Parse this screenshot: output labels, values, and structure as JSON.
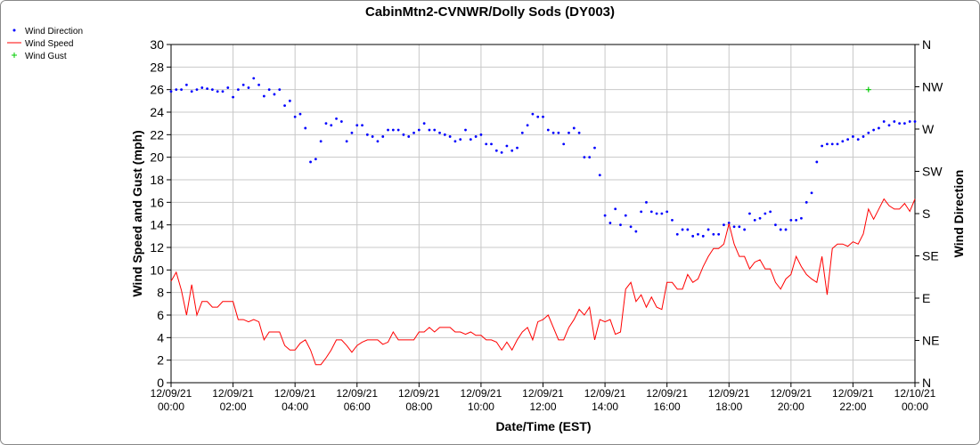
{
  "chart_data": {
    "type": "line",
    "title": "CabinMtn2-CVNWR/Dolly Sods (DY003)",
    "x_label": "Date/Time (EST)",
    "y_label": "Wind Speed and Gust (mph)",
    "y2_label": "Wind Direction",
    "xlim": [
      "12/09/21 00:00",
      "12/10/21 00:00"
    ],
    "xticks": [
      "12/09/21 00:00",
      "12/09/21 02:00",
      "12/09/21 04:00",
      "12/09/21 06:00",
      "12/09/21 08:00",
      "12/09/21 10:00",
      "12/09/21 12:00",
      "12/09/21 14:00",
      "12/09/21 16:00",
      "12/09/21 18:00",
      "12/09/21 20:00",
      "12/09/21 22:00",
      "12/10/21 00:00"
    ],
    "ylim": [
      0,
      30
    ],
    "yticks": [
      0,
      2,
      4,
      6,
      8,
      10,
      12,
      14,
      16,
      18,
      20,
      22,
      24,
      26,
      28,
      30
    ],
    "y2lim": [
      0,
      360
    ],
    "y2ticks": [
      {
        "value": 0,
        "label": "N"
      },
      {
        "value": 45,
        "label": "NE"
      },
      {
        "value": 90,
        "label": "E"
      },
      {
        "value": 135,
        "label": "SE"
      },
      {
        "value": 180,
        "label": "S"
      },
      {
        "value": 225,
        "label": "SW"
      },
      {
        "value": 270,
        "label": "W"
      },
      {
        "value": 315,
        "label": "NW"
      },
      {
        "value": 360,
        "label": "N"
      }
    ],
    "grid": true,
    "legend": "top-left",
    "x": [
      "12/09/21 00:00",
      "12/09/21 00:10",
      "12/09/21 00:20",
      "12/09/21 00:30",
      "12/09/21 00:40",
      "12/09/21 00:50",
      "12/09/21 01:00",
      "12/09/21 01:10",
      "12/09/21 01:20",
      "12/09/21 01:30",
      "12/09/21 01:40",
      "12/09/21 01:50",
      "12/09/21 02:00",
      "12/09/21 02:10",
      "12/09/21 02:20",
      "12/09/21 02:30",
      "12/09/21 02:40",
      "12/09/21 02:50",
      "12/09/21 03:00",
      "12/09/21 03:10",
      "12/09/21 03:20",
      "12/09/21 03:30",
      "12/09/21 03:40",
      "12/09/21 03:50",
      "12/09/21 04:00",
      "12/09/21 04:10",
      "12/09/21 04:20",
      "12/09/21 04:30",
      "12/09/21 04:40",
      "12/09/21 04:50",
      "12/09/21 05:00",
      "12/09/21 05:10",
      "12/09/21 05:20",
      "12/09/21 05:30",
      "12/09/21 05:40",
      "12/09/21 05:50",
      "12/09/21 06:00",
      "12/09/21 06:10",
      "12/09/21 06:20",
      "12/09/21 06:30",
      "12/09/21 06:40",
      "12/09/21 06:50",
      "12/09/21 07:00",
      "12/09/21 07:10",
      "12/09/21 07:20",
      "12/09/21 07:30",
      "12/09/21 07:40",
      "12/09/21 07:50",
      "12/09/21 08:00",
      "12/09/21 08:10",
      "12/09/21 08:20",
      "12/09/21 08:30",
      "12/09/21 08:40",
      "12/09/21 08:50",
      "12/09/21 09:00",
      "12/09/21 09:10",
      "12/09/21 09:20",
      "12/09/21 09:30",
      "12/09/21 09:40",
      "12/09/21 09:50",
      "12/09/21 10:00",
      "12/09/21 10:10",
      "12/09/21 10:20",
      "12/09/21 10:30",
      "12/09/21 10:40",
      "12/09/21 10:50",
      "12/09/21 11:00",
      "12/09/21 11:10",
      "12/09/21 11:20",
      "12/09/21 11:30",
      "12/09/21 11:40",
      "12/09/21 11:50",
      "12/09/21 12:00",
      "12/09/21 12:10",
      "12/09/21 12:20",
      "12/09/21 12:30",
      "12/09/21 12:40",
      "12/09/21 12:50",
      "12/09/21 13:00",
      "12/09/21 13:10",
      "12/09/21 13:20",
      "12/09/21 13:30",
      "12/09/21 13:40",
      "12/09/21 13:50",
      "12/09/21 14:00",
      "12/09/21 14:10",
      "12/09/21 14:20",
      "12/09/21 14:30",
      "12/09/21 14:40",
      "12/09/21 14:50",
      "12/09/21 15:00",
      "12/09/21 15:10",
      "12/09/21 15:20",
      "12/09/21 15:30",
      "12/09/21 15:40",
      "12/09/21 15:50",
      "12/09/21 16:00",
      "12/09/21 16:10",
      "12/09/21 16:20",
      "12/09/21 16:30",
      "12/09/21 16:40",
      "12/09/21 16:50",
      "12/09/21 17:00",
      "12/09/21 17:10",
      "12/09/21 17:20",
      "12/09/21 17:30",
      "12/09/21 17:40",
      "12/09/21 17:50",
      "12/09/21 18:00",
      "12/09/21 18:10",
      "12/09/21 18:20",
      "12/09/21 18:30",
      "12/09/21 18:40",
      "12/09/21 18:50",
      "12/09/21 19:00",
      "12/09/21 19:10",
      "12/09/21 19:20",
      "12/09/21 19:30",
      "12/09/21 19:40",
      "12/09/21 19:50",
      "12/09/21 20:00",
      "12/09/21 20:10",
      "12/09/21 20:20",
      "12/09/21 20:30",
      "12/09/21 20:40",
      "12/09/21 20:50",
      "12/09/21 21:00",
      "12/09/21 21:10",
      "12/09/21 21:20",
      "12/09/21 21:30",
      "12/09/21 21:40",
      "12/09/21 21:50",
      "12/09/21 22:00",
      "12/09/21 22:10",
      "12/09/21 22:20",
      "12/09/21 22:30",
      "12/09/21 22:40",
      "12/09/21 22:50",
      "12/09/21 23:00",
      "12/09/21 23:10",
      "12/09/21 23:20",
      "12/09/21 23:30",
      "12/09/21 23:40",
      "12/09/21 23:50",
      "12/10/21 00:00"
    ],
    "series": [
      {
        "name": "Wind Direction",
        "color": "#0000ff",
        "mark": "dot",
        "axis": "y2",
        "values": [
          310,
          312,
          312,
          317,
          310,
          312,
          314,
          313,
          312,
          310,
          310,
          314,
          304,
          312,
          317,
          314,
          324,
          317,
          305,
          312,
          307,
          312,
          295,
          300,
          283,
          286,
          271,
          235,
          238,
          257,
          276,
          274,
          281,
          278,
          257,
          266,
          274,
          274,
          264,
          262,
          257,
          262,
          269,
          269,
          269,
          264,
          262,
          266,
          269,
          276,
          269,
          269,
          266,
          264,
          262,
          257,
          259,
          269,
          259,
          262,
          264,
          254,
          254,
          247,
          245,
          252,
          247,
          250,
          266,
          274,
          286,
          283,
          283,
          269,
          266,
          266,
          254,
          266,
          271,
          266,
          240,
          240,
          250,
          221,
          178,
          170,
          185,
          168,
          178,
          166,
          161,
          182,
          192,
          182,
          180,
          180,
          182,
          173,
          158,
          163,
          163,
          156,
          158,
          156,
          163,
          158,
          158,
          168,
          170,
          166,
          166,
          163,
          180,
          173,
          175,
          180,
          182,
          168,
          163,
          163,
          173,
          173,
          175,
          192,
          202,
          235,
          252,
          254,
          254,
          254,
          257,
          259,
          262,
          259,
          262,
          266,
          269,
          271,
          278,
          274,
          278,
          276,
          276,
          278,
          278
        ]
      },
      {
        "name": "Wind Speed",
        "color": "#ff0000",
        "mark": "line",
        "values": [
          9.0,
          9.8,
          8.2,
          6.0,
          8.7,
          6.0,
          7.2,
          7.2,
          6.7,
          6.7,
          7.2,
          7.2,
          7.2,
          5.6,
          5.6,
          5.4,
          5.6,
          5.4,
          3.8,
          4.5,
          4.5,
          4.5,
          3.3,
          2.9,
          2.9,
          3.5,
          3.8,
          2.9,
          1.6,
          1.6,
          2.2,
          2.9,
          3.8,
          3.8,
          3.3,
          2.7,
          3.3,
          3.6,
          3.8,
          3.8,
          3.8,
          3.4,
          3.6,
          4.5,
          3.8,
          3.8,
          3.8,
          3.8,
          4.5,
          4.5,
          4.9,
          4.5,
          4.9,
          4.9,
          4.9,
          4.5,
          4.5,
          4.3,
          4.5,
          4.2,
          4.2,
          3.8,
          3.8,
          3.6,
          2.9,
          3.6,
          2.9,
          3.8,
          4.5,
          4.9,
          3.8,
          5.4,
          5.6,
          6.0,
          4.9,
          3.8,
          3.8,
          4.9,
          5.6,
          6.5,
          6.0,
          6.7,
          3.8,
          5.6,
          5.4,
          5.6,
          4.3,
          4.5,
          8.3,
          8.9,
          7.2,
          7.8,
          6.7,
          7.6,
          6.7,
          6.5,
          8.9,
          8.9,
          8.3,
          8.3,
          9.6,
          8.9,
          9.2,
          10.3,
          11.2,
          11.9,
          11.9,
          12.3,
          14.1,
          12.3,
          11.2,
          11.2,
          10.1,
          10.7,
          10.9,
          10.1,
          10.1,
          8.9,
          8.3,
          9.2,
          9.6,
          11.2,
          10.3,
          9.6,
          9.2,
          8.9,
          11.2,
          7.8,
          11.9,
          12.3,
          12.3,
          12.1,
          12.5,
          12.3,
          13.2,
          15.4,
          14.5,
          15.4,
          16.3,
          15.7,
          15.4,
          15.4,
          15.9,
          15.2,
          16.3
        ]
      },
      {
        "name": "Wind Gust",
        "color": "#00cc00",
        "mark": "plus",
        "x": [
          "12/09/21 22:30"
        ],
        "values": [
          26
        ]
      }
    ]
  }
}
